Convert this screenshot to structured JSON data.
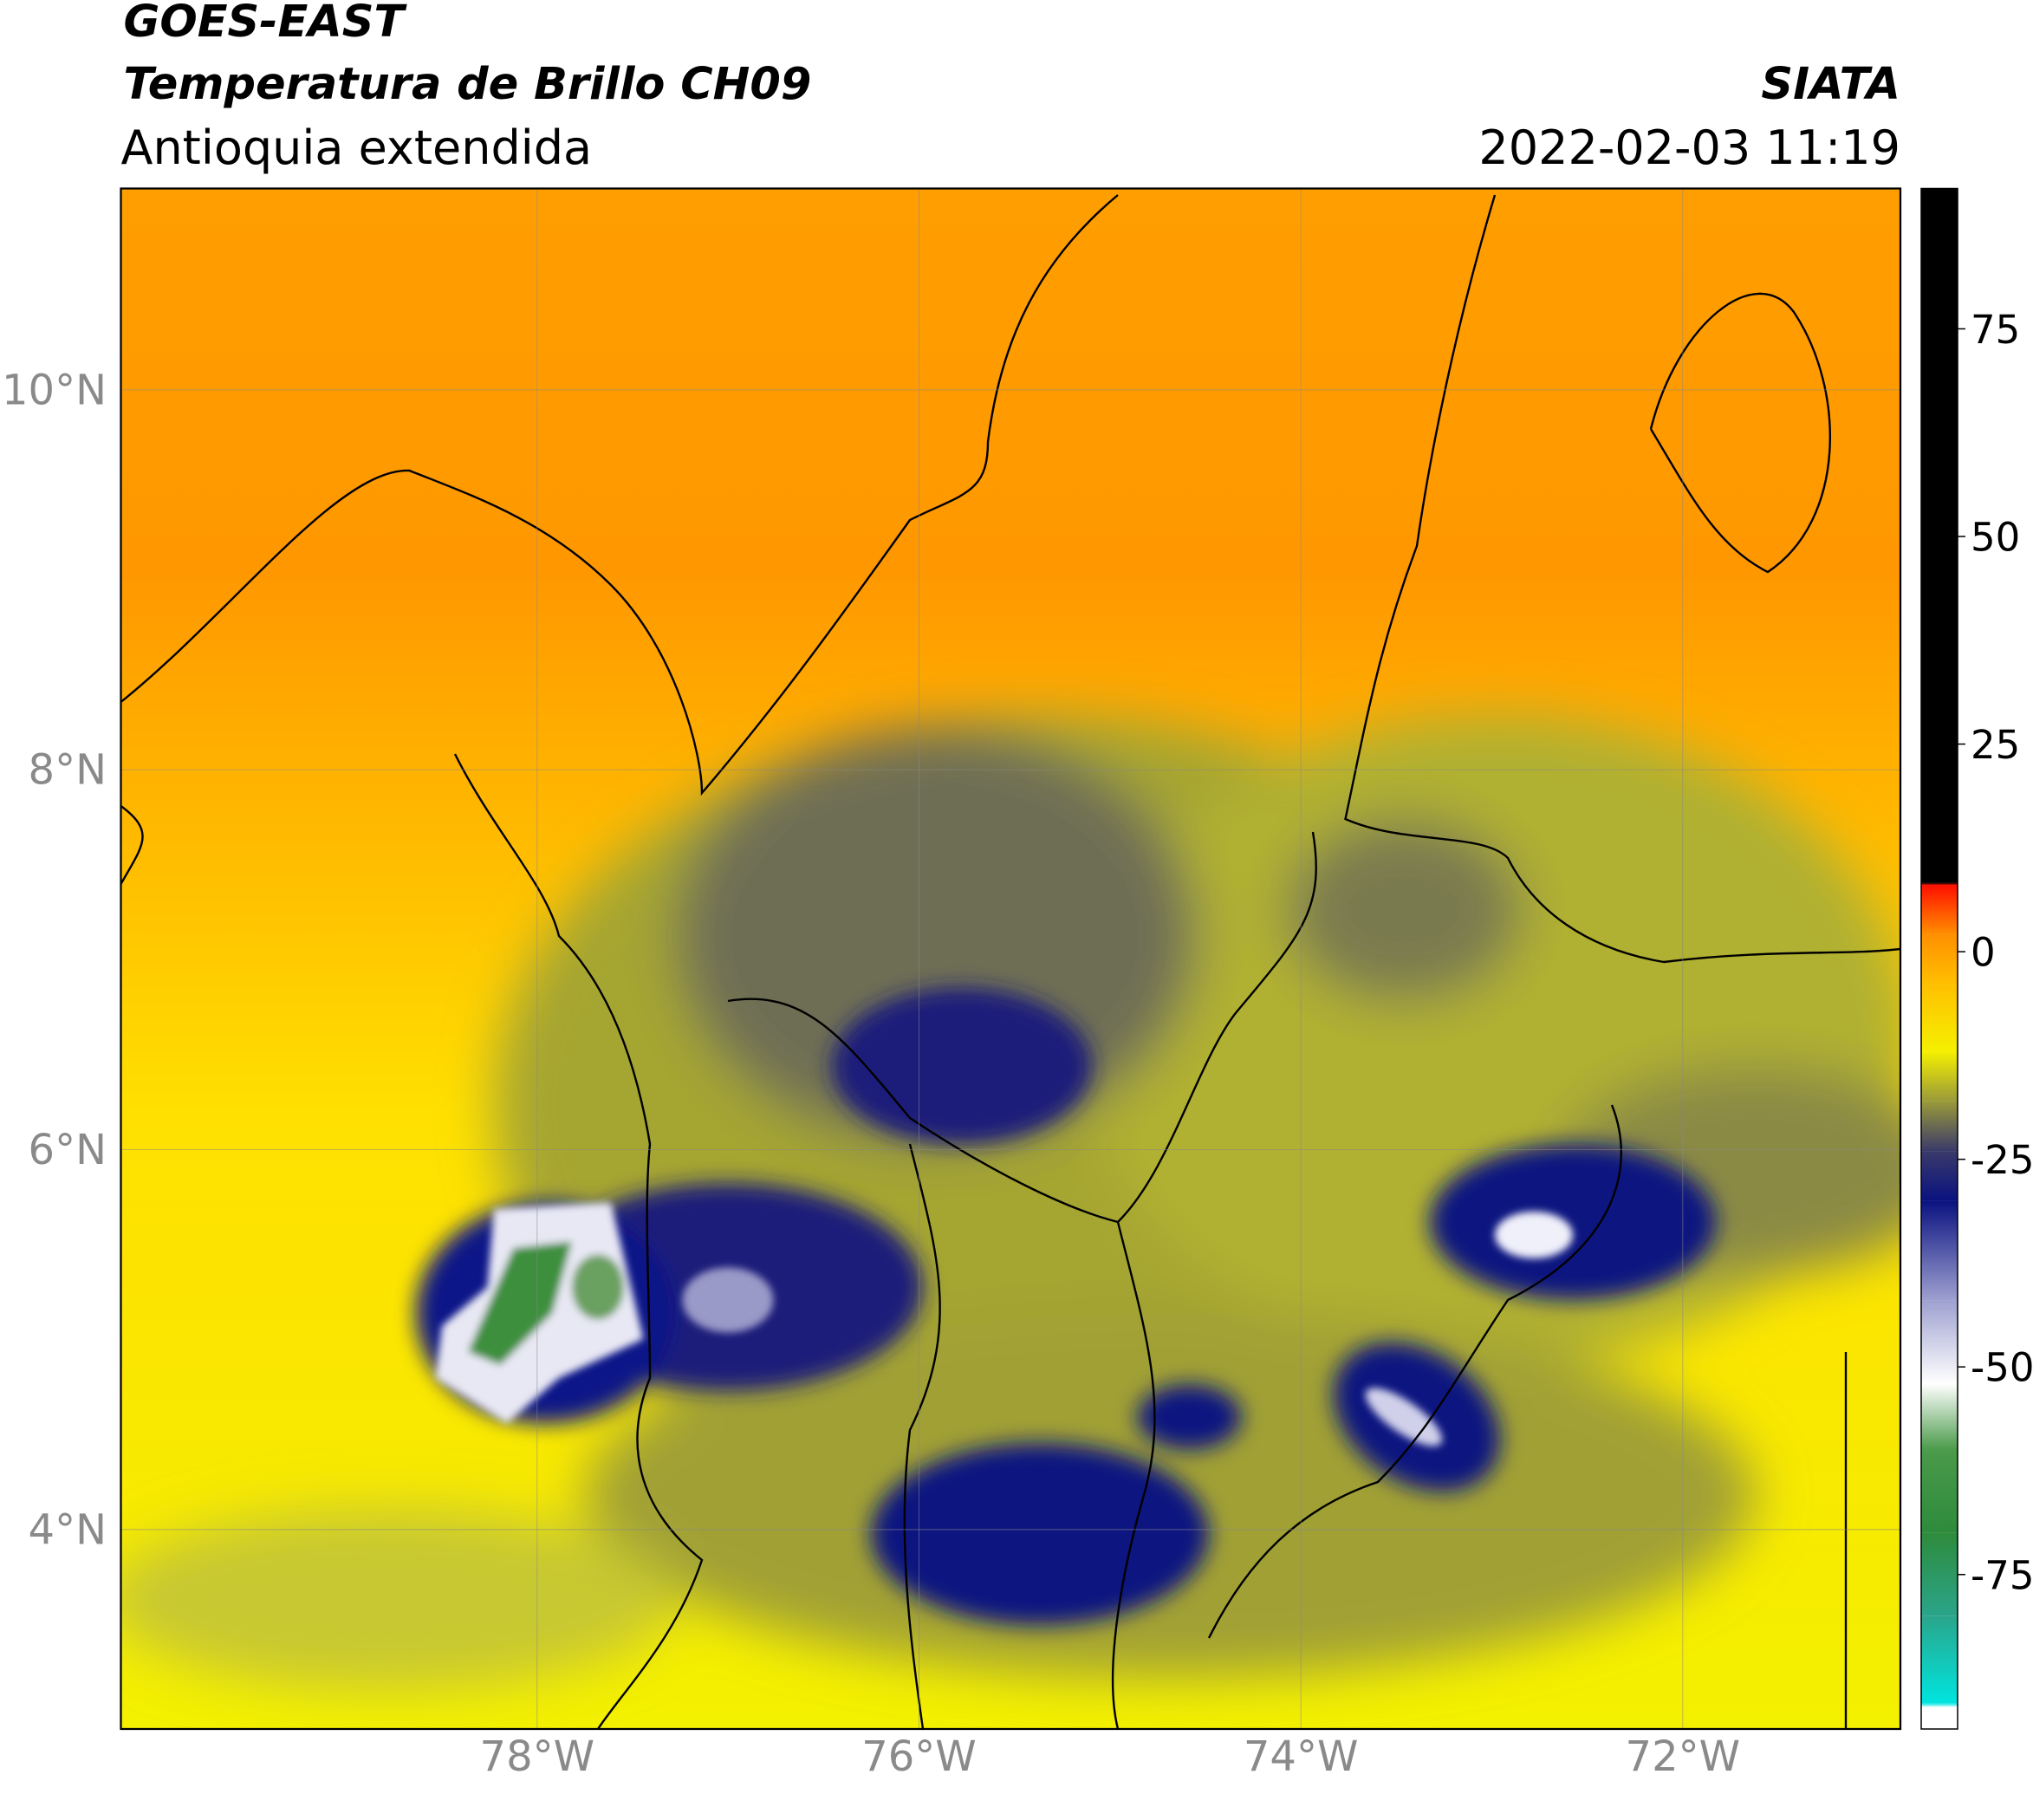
{
  "header": {
    "satellite": "GOES-EAST",
    "product": "Temperatura de Brillo CH09",
    "region": "Antioquia extendida",
    "source": "SIATA",
    "datetime": "2022-02-03 11:19"
  },
  "map": {
    "xlim": [
      -80.18,
      -70.86
    ],
    "ylim": [
      2.95,
      11.06
    ],
    "xticks": [
      {
        "value": -78,
        "label": "78°W"
      },
      {
        "value": -76,
        "label": "76°W"
      },
      {
        "value": -74,
        "label": "74°W"
      },
      {
        "value": -72,
        "label": "72°W"
      }
    ],
    "yticks": [
      {
        "value": 4,
        "label": "4°N"
      },
      {
        "value": 6,
        "label": "6°N"
      },
      {
        "value": 8,
        "label": "8°N"
      },
      {
        "value": 10,
        "label": "10°N"
      }
    ],
    "grid": true
  },
  "colorbar": {
    "lim": [
      -93.6,
      91.9
    ],
    "ticks": [
      -75,
      -50,
      -25,
      0,
      25,
      50,
      75
    ],
    "colormap": [
      {
        "value": -93.6,
        "color": "#ffffff"
      },
      {
        "value": -91,
        "color": "#ffffff"
      },
      {
        "value": -90.5,
        "color": "#00e5e0"
      },
      {
        "value": -80,
        "color": "#2aa58a"
      },
      {
        "value": -70,
        "color": "#2e8b3c"
      },
      {
        "value": -60,
        "color": "#4a9a4a"
      },
      {
        "value": -52,
        "color": "#ffffff"
      },
      {
        "value": -42,
        "color": "#9ea0d0"
      },
      {
        "value": -30,
        "color": "#0a1280"
      },
      {
        "value": -24,
        "color": "#3a3a6a"
      },
      {
        "value": -18,
        "color": "#9a9a3a"
      },
      {
        "value": -12,
        "color": "#f5f000"
      },
      {
        "value": -4,
        "color": "#ffc000"
      },
      {
        "value": 2,
        "color": "#ff9000"
      },
      {
        "value": 8,
        "color": "#ff1000"
      },
      {
        "value": 8.3,
        "color": "#000000"
      },
      {
        "value": 91.9,
        "color": "#000000"
      }
    ]
  }
}
